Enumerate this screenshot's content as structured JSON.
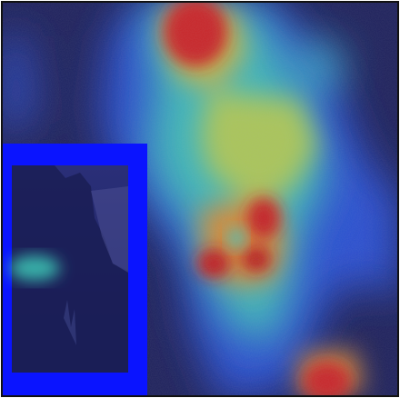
{
  "figure": {
    "kind": "attention-heatmap-overlay",
    "colormap": "jet",
    "colors": {
      "background_dark": "#1c1f5a",
      "frame_border": "#111111",
      "inset_frame": "#0a14ff",
      "inset_tint": "#3a3f8a"
    },
    "hotspots": [
      {
        "label": "top-center",
        "intensity": 1.0
      },
      {
        "label": "center-right",
        "intensity": 1.0
      },
      {
        "label": "bottom-right",
        "intensity": 0.95
      }
    ],
    "inset": {
      "description_visible": false,
      "has_blue_frame": true
    }
  }
}
